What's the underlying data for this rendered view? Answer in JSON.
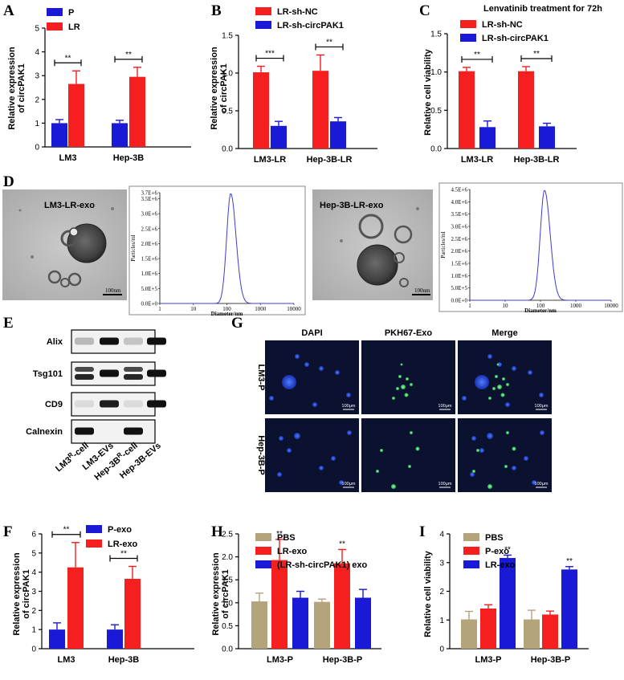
{
  "colors": {
    "red": "#f61f1f",
    "blue": "#1a1ad6",
    "tan": "#b4a47c",
    "em_bg": "#b9b9b9",
    "dist_line": "#3b3bd0",
    "fluor_bg": "#0a1230"
  },
  "panels": {
    "A": {
      "label": "A",
      "chart_data": {
        "type": "bar",
        "ylabel": "Relative expression of circPAK1",
        "ylim": [
          0,
          5
        ],
        "yticks": [
          0,
          1,
          2,
          3,
          4,
          5
        ],
        "categories": [
          "LM3",
          "Hep-3B"
        ],
        "series": [
          {
            "name": "P",
            "color": "blue",
            "values": [
              1.0,
              1.0
            ],
            "errors": [
              0.15,
              0.12
            ]
          },
          {
            "name": "LR",
            "color": "red",
            "values": [
              2.65,
              2.95
            ],
            "errors": [
              0.55,
              0.4
            ]
          }
        ],
        "significance": [
          "**",
          "**"
        ],
        "legend_position": "top-left"
      }
    },
    "B": {
      "label": "B",
      "chart_data": {
        "type": "bar",
        "ylabel": "Relative expression of circPAK1",
        "ylim": [
          0,
          1.5
        ],
        "yticks": [
          0.0,
          0.5,
          1.0,
          1.5
        ],
        "categories": [
          "LM3-LR",
          "Hep-3B-LR"
        ],
        "series": [
          {
            "name": "LR-sh-NC",
            "color": "red",
            "values": [
              1.01,
              1.03
            ],
            "errors": [
              0.08,
              0.21
            ]
          },
          {
            "name": "LR-sh-circPAK1",
            "color": "blue",
            "values": [
              0.3,
              0.36
            ],
            "errors": [
              0.06,
              0.05
            ]
          }
        ],
        "significance": [
          "***",
          "**"
        ],
        "legend_position": "top-left"
      }
    },
    "C": {
      "label": "C",
      "chart_data": {
        "type": "bar",
        "title": "Lenvatinib treatment for 72h",
        "ylabel": "Relative cell viability",
        "ylim": [
          0,
          1.5
        ],
        "yticks": [
          0.0,
          0.5,
          1.0,
          1.5
        ],
        "categories": [
          "LM3-LR",
          "Hep-3B-LR"
        ],
        "series": [
          {
            "name": "LR-sh-NC",
            "color": "red",
            "values": [
              1.01,
              1.01
            ],
            "errors": [
              0.05,
              0.06
            ]
          },
          {
            "name": "LR-sh-circPAK1",
            "color": "blue",
            "values": [
              0.28,
              0.29
            ],
            "errors": [
              0.08,
              0.04
            ]
          }
        ],
        "significance": [
          "**",
          "**"
        ],
        "legend_position": "top-left"
      }
    },
    "D": {
      "label": "D",
      "left": {
        "image_label": "LM3-LR-exo",
        "scale_bar": "100nm",
        "dist": {
          "ylabel": "Particles/ml",
          "xlabel": "Diameter/nm",
          "yticks": [
            "0.0E+0",
            "5.0E+5",
            "1.0E+6",
            "1.5E+6",
            "2.0E+6",
            "2.5E+6",
            "3.0E+6",
            "3.5E+6",
            "3.7E+6"
          ],
          "xticks": [
            "1",
            "10",
            "100",
            "1000",
            "10000"
          ],
          "peak_diameter_nm": 130
        }
      },
      "right": {
        "image_label": "Hep-3B-LR-exo",
        "scale_bar": "100nm",
        "dist": {
          "ylabel": "Particles/ml",
          "xlabel": "Diameter/nm",
          "yticks": [
            "0.0E+0",
            "5.0E+5",
            "1.0E+6",
            "1.5E+6",
            "2.0E+6",
            "2.5E+6",
            "3.0E+6",
            "3.5E+6",
            "4.0E+6",
            "4.5E+6"
          ],
          "xticks": [
            "1",
            "10",
            "100",
            "1000",
            "10000"
          ],
          "peak_diameter_nm": 130
        }
      }
    },
    "E": {
      "label": "E",
      "rows": [
        "Alix",
        "Tsg101",
        "CD9",
        "Calnexin"
      ],
      "lanes": [
        {
          "pre": "LM3",
          "sup": "R",
          "post": "-cell"
        },
        {
          "pre": "LM3-EVs",
          "sup": "",
          "post": ""
        },
        {
          "pre": "Hep-3B",
          "sup": "R",
          "post": "-cell"
        },
        {
          "pre": "Hep-3B-EVs",
          "sup": "",
          "post": ""
        }
      ]
    },
    "G": {
      "label": "G",
      "cols": [
        "DAPI",
        "PKH67-Exo",
        "Merge"
      ],
      "rows": [
        "LM3-P",
        "Hep-3B-P"
      ],
      "scale_bar": "100μm"
    },
    "F": {
      "label": "F",
      "chart_data": {
        "type": "bar",
        "ylabel": "Relative expression of circPAK1",
        "ylim": [
          0,
          6
        ],
        "yticks": [
          0,
          1,
          2,
          3,
          4,
          5,
          6
        ],
        "categories": [
          "LM3",
          "Hep-3B"
        ],
        "series": [
          {
            "name": "P-exo",
            "color": "blue",
            "values": [
              1.0,
              1.0
            ],
            "errors": [
              0.35,
              0.25
            ]
          },
          {
            "name": "LR-exo",
            "color": "red",
            "values": [
              4.25,
              3.65
            ],
            "errors": [
              1.3,
              0.65
            ]
          }
        ],
        "significance": [
          "**",
          "**"
        ],
        "legend_position": "top-right"
      }
    },
    "H": {
      "label": "H",
      "chart_data": {
        "type": "bar",
        "ylabel": "Relative expression of circPAK1",
        "ylim": [
          0,
          2.5
        ],
        "yticks": [
          0.0,
          0.5,
          1.0,
          1.5,
          2.0,
          2.5
        ],
        "categories": [
          "LM3-P",
          "Hep-3B-P"
        ],
        "series": [
          {
            "name": "PBS",
            "color": "tan",
            "values": [
              1.03,
              1.02
            ],
            "errors": [
              0.18,
              0.06
            ]
          },
          {
            "name": "LR-exo",
            "color": "red",
            "values": [
              1.93,
              1.86
            ],
            "errors": [
              0.45,
              0.3
            ]
          },
          {
            "name": "(LR-sh-circPAK1) exo",
            "color": "blue",
            "values": [
              1.11,
              1.11
            ],
            "errors": [
              0.14,
              0.18
            ]
          }
        ],
        "significance": [
          "**",
          "**"
        ],
        "legend_position": "top-left"
      }
    },
    "I": {
      "label": "I",
      "chart_data": {
        "type": "bar",
        "ylabel": "Relative cell viability",
        "ylim": [
          0,
          4
        ],
        "yticks": [
          0,
          1,
          2,
          3,
          4
        ],
        "categories": [
          "LM3-P",
          "Hep-3B-P"
        ],
        "series": [
          {
            "name": "PBS",
            "color": "tan",
            "values": [
              1.02,
              1.02
            ],
            "errors": [
              0.28,
              0.32
            ]
          },
          {
            "name": "P-exo",
            "color": "red",
            "values": [
              1.4,
              1.19
            ],
            "errors": [
              0.13,
              0.12
            ]
          },
          {
            "name": "LR-exo",
            "color": "blue",
            "values": [
              3.16,
              2.76
            ],
            "errors": [
              0.1,
              0.1
            ]
          }
        ],
        "significance": [
          "**",
          "**"
        ],
        "legend_position": "top-left"
      }
    }
  }
}
